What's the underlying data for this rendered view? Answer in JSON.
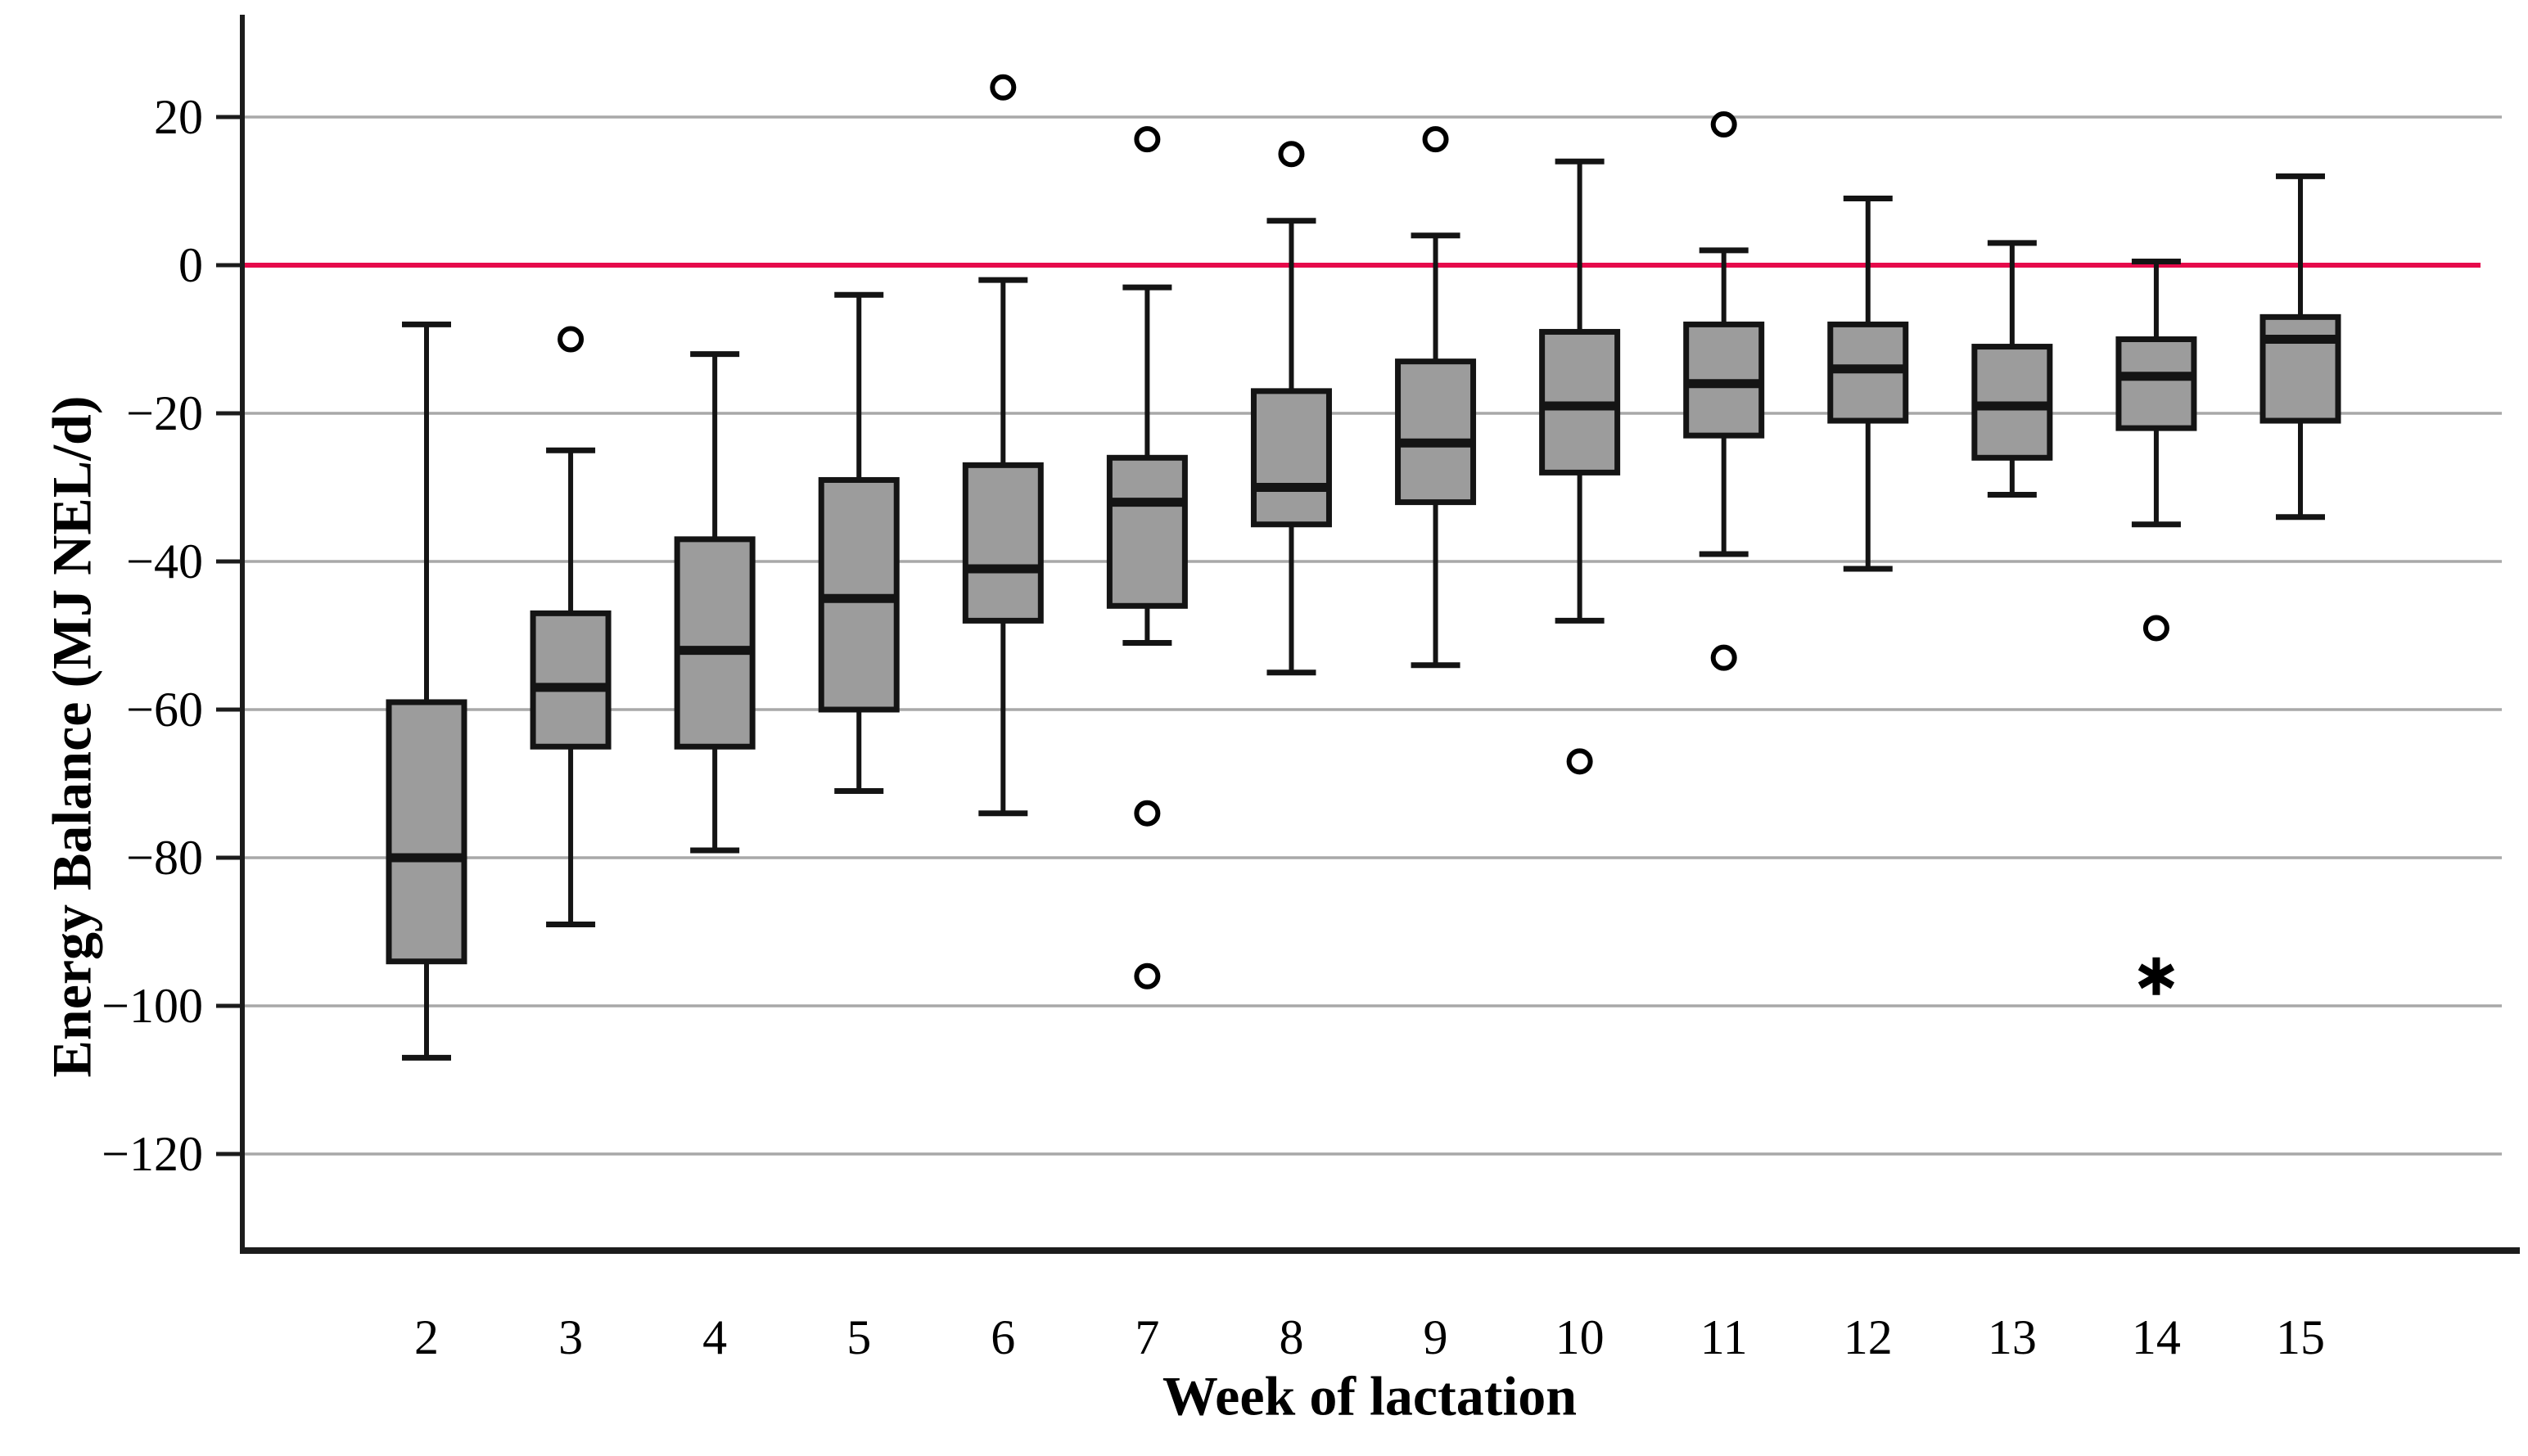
{
  "figure": {
    "y_axis": {
      "title": "Energy Balance (MJ NEL/d)",
      "tick_labels": [
        "20",
        "0",
        "−20",
        "−40",
        "−60",
        "−80",
        "−100",
        "−120"
      ],
      "tick_values": [
        20,
        0,
        -20,
        -40,
        -60,
        -80,
        -100,
        -120
      ]
    },
    "x_axis": {
      "title": "Week of lactation",
      "tick_labels": [
        "2",
        "3",
        "4",
        "5",
        "6",
        "7",
        "8",
        "9",
        "10",
        "11",
        "12",
        "13",
        "14",
        "15"
      ]
    },
    "reference_line": {
      "value": 0,
      "color": "#e60a4b"
    },
    "colors": {
      "box_fill": "#9c9c9c",
      "box_border": "#141414",
      "gridline": "#a8a8a8",
      "axis": "#1c1c1c",
      "zero_line": "#e60a4b",
      "text": "#000000",
      "background": "#ffffff"
    }
  },
  "chart_data": {
    "type": "boxplot",
    "title": "",
    "xlabel": "Week of lactation",
    "ylabel": "Energy Balance (MJ NEL/d)",
    "ylim": [
      -134,
      34
    ],
    "yticks": [
      20,
      0,
      -20,
      -40,
      -60,
      -80,
      -100,
      -120
    ],
    "grid": "horizontal, at 20-unit steps, none at 0 (replaced by red zero reference line)",
    "legend": "none",
    "categories": [
      "2",
      "3",
      "4",
      "5",
      "6",
      "7",
      "8",
      "9",
      "10",
      "11",
      "12",
      "13",
      "14",
      "15"
    ],
    "series": [
      {
        "week": "2",
        "low": -107,
        "q1": -94,
        "median": -80,
        "q3": -59,
        "high": -8,
        "outliers": [],
        "extremes": []
      },
      {
        "week": "3",
        "low": -89,
        "q1": -65,
        "median": -57,
        "q3": -47,
        "high": -25,
        "outliers": [
          -10
        ],
        "extremes": []
      },
      {
        "week": "4",
        "low": -79,
        "q1": -65,
        "median": -52,
        "q3": -37,
        "high": -12,
        "outliers": [],
        "extremes": []
      },
      {
        "week": "5",
        "low": -71,
        "q1": -60,
        "median": -45,
        "q3": -29,
        "high": -4,
        "outliers": [],
        "extremes": []
      },
      {
        "week": "6",
        "low": -74,
        "q1": -48,
        "median": -41,
        "q3": -27,
        "high": -2,
        "outliers": [
          24
        ],
        "extremes": []
      },
      {
        "week": "7",
        "low": -51,
        "q1": -46,
        "median": -32,
        "q3": -26,
        "high": -3,
        "outliers": [
          17,
          -74,
          -96
        ],
        "extremes": []
      },
      {
        "week": "8",
        "low": -55,
        "q1": -35,
        "median": -30,
        "q3": -17,
        "high": 6,
        "outliers": [
          15
        ],
        "extremes": []
      },
      {
        "week": "9",
        "low": -54,
        "q1": -32,
        "median": -24,
        "q3": -13,
        "high": 4,
        "outliers": [
          17
        ],
        "extremes": []
      },
      {
        "week": "10",
        "low": -48,
        "q1": -28,
        "median": -19,
        "q3": -9,
        "high": 14,
        "outliers": [
          -67
        ],
        "extremes": []
      },
      {
        "week": "11",
        "low": -39,
        "q1": -23,
        "median": -16,
        "q3": -8,
        "high": 2,
        "outliers": [
          19,
          -53
        ],
        "extremes": []
      },
      {
        "week": "12",
        "low": -41,
        "q1": -21,
        "median": -14,
        "q3": -8,
        "high": 9,
        "outliers": [],
        "extremes": []
      },
      {
        "week": "13",
        "low": -31,
        "q1": -26,
        "median": -19,
        "q3": -11,
        "high": 3,
        "outliers": [],
        "extremes": []
      },
      {
        "week": "14",
        "low": -35,
        "q1": -22,
        "median": -15,
        "q3": -10,
        "high": 0.5,
        "outliers": [
          -49
        ],
        "extremes": [
          -96
        ]
      },
      {
        "week": "15",
        "low": -34,
        "q1": -21,
        "median": -10,
        "q3": -7,
        "high": 12,
        "outliers": [],
        "extremes": []
      }
    ]
  }
}
